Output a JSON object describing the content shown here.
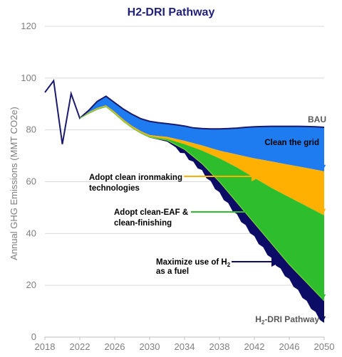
{
  "chart_data": {
    "type": "area",
    "title": "H2-DRI Pathway",
    "ylabel": "Annual GHG Emissions (MMT CO2e)",
    "xlabel": "",
    "xlim": [
      2018,
      2050
    ],
    "ylim": [
      0,
      120
    ],
    "x_ticks": [
      "2018",
      "2022",
      "2026",
      "2030",
      "2034",
      "2038",
      "2042",
      "2046",
      "2050"
    ],
    "y_ticks": [
      "0",
      "20",
      "40",
      "60",
      "80",
      "100",
      "120"
    ],
    "grid": "horizontal",
    "colors": {
      "bau": "#1a1a6e",
      "clean_grid": "#1e7cf0",
      "clean_ironmaking": "#ffb000",
      "clean_eaf": "#2dbd2d",
      "h2_fuel": "#0c0c66",
      "h2_dri": "#0c0c66"
    },
    "series": [
      {
        "key": "bau",
        "name": "BAU",
        "x": [
          2018,
          2019,
          2020,
          2021,
          2022,
          2023,
          2024,
          2025,
          2026,
          2027,
          2028,
          2029,
          2030,
          2031,
          2032,
          2033,
          2034,
          2035,
          2036,
          2037,
          2038,
          2039,
          2040,
          2041,
          2042,
          2043,
          2044,
          2045,
          2046,
          2047,
          2048,
          2049,
          2050
        ],
        "values": [
          94.5,
          99,
          74.5,
          94,
          84.5,
          87.5,
          91,
          93,
          90.5,
          88,
          86,
          84.3,
          83.3,
          82.8,
          82.4,
          82,
          81.5,
          80.8,
          80.5,
          80.4,
          80.4,
          80.5,
          80.7,
          81,
          81.2,
          81.3,
          81.4,
          81.4,
          81.4,
          81.4,
          81.3,
          81.2,
          81
        ]
      },
      {
        "key": "clean_grid",
        "name": "Clean the grid",
        "x": [
          2022,
          2023,
          2024,
          2025,
          2026,
          2027,
          2028,
          2029,
          2030,
          2032,
          2034,
          2036,
          2038,
          2040,
          2042,
          2044,
          2046,
          2048,
          2050
        ],
        "values": [
          84.5,
          86.8,
          88.5,
          89.5,
          87,
          84,
          81.5,
          79.5,
          78,
          77.3,
          75.8,
          74,
          72,
          70.5,
          69,
          67.8,
          66.5,
          65.3,
          64
        ]
      },
      {
        "key": "clean_ironmaking",
        "name": "Adopt clean ironmaking technologies",
        "x": [
          2022,
          2023,
          2024,
          2025,
          2026,
          2027,
          2028,
          2029,
          2030,
          2032,
          2034,
          2036,
          2038,
          2040,
          2042,
          2044,
          2046,
          2048,
          2050
        ],
        "values": [
          84.5,
          86.6,
          88.2,
          89.2,
          86.5,
          83.5,
          81,
          79,
          77.5,
          76.5,
          74.5,
          72,
          69,
          65.5,
          61.5,
          57.5,
          54,
          50.5,
          47
        ]
      },
      {
        "key": "clean_eaf",
        "name": "Adopt clean-EAF & clean-finishing",
        "x": [
          2022,
          2023,
          2024,
          2025,
          2026,
          2027,
          2028,
          2029,
          2030,
          2032,
          2034,
          2036,
          2038,
          2040,
          2042,
          2044,
          2046,
          2048,
          2050
        ],
        "values": [
          84.5,
          86.4,
          88,
          89,
          86.3,
          83.3,
          80.8,
          78.8,
          77.2,
          76,
          72.5,
          67,
          60,
          52,
          44,
          36,
          28,
          21,
          14
        ]
      },
      {
        "key": "h2_dri",
        "name": "H2-DRI Pathway",
        "x": [
          2022,
          2023,
          2024,
          2025,
          2026,
          2027,
          2028,
          2029,
          2030,
          2032,
          2034,
          2036,
          2038,
          2040,
          2042,
          2044,
          2046,
          2048,
          2050
        ],
        "values": [
          84.3,
          86.2,
          87.8,
          88.8,
          86.1,
          83.1,
          80.6,
          78.6,
          77,
          75.5,
          71,
          64.5,
          56,
          47.5,
          39,
          30.5,
          22.5,
          14,
          5.5
        ]
      }
    ],
    "annotations": [
      {
        "key": "bau_label",
        "text": "BAU"
      },
      {
        "key": "clean_grid_label",
        "text": "Clean the grid"
      },
      {
        "key": "ironmaking_label",
        "lines": [
          "Adopt clean ironmaking",
          "technologies"
        ]
      },
      {
        "key": "eaf_label",
        "lines": [
          "Adopt clean-EAF &",
          "clean-finishing"
        ]
      },
      {
        "key": "h2_fuel_label",
        "lines": [
          "Maximize use of H",
          "2",
          "as a fuel"
        ]
      },
      {
        "key": "h2dri_label",
        "parts": [
          "H",
          "2",
          "-DRI Pathway"
        ]
      }
    ]
  }
}
